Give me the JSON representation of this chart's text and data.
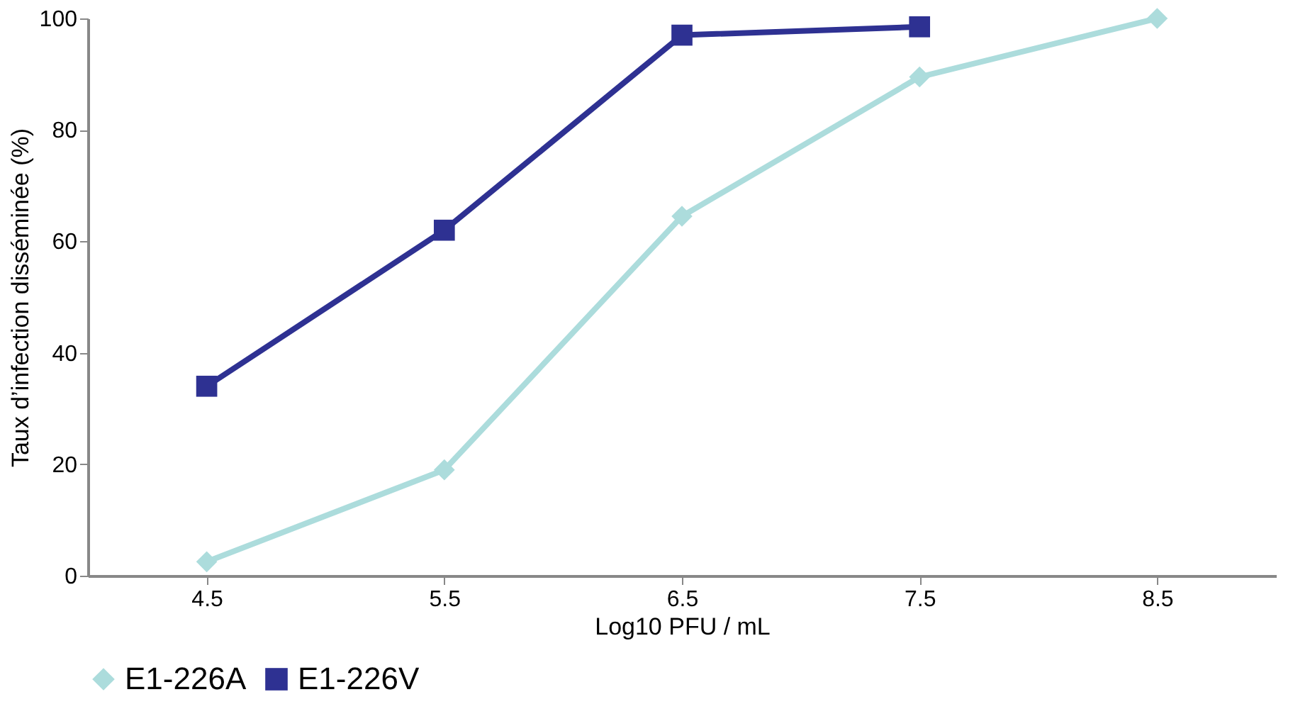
{
  "chart_data": {
    "type": "line",
    "xlabel": "Log10 PFU / mL",
    "ylabel": "Taux d’infection disséminée (%)",
    "categories": [
      "4.5",
      "5.5",
      "6.5",
      "7.5",
      "8.5"
    ],
    "ylim": [
      0,
      100
    ],
    "yticks": [
      0,
      20,
      40,
      60,
      80,
      100
    ],
    "grid": false,
    "legend": "bottom",
    "line_style": "solid",
    "series": [
      {
        "name": "E1-226A",
        "color": "#acdcdc",
        "marker": "diamond",
        "values": [
          2.5,
          19,
          64.5,
          89.5,
          100
        ]
      },
      {
        "name": "E1-226V",
        "color": "#2e3192",
        "marker": "square",
        "values": [
          34,
          62,
          97,
          98.5,
          null
        ]
      }
    ]
  }
}
